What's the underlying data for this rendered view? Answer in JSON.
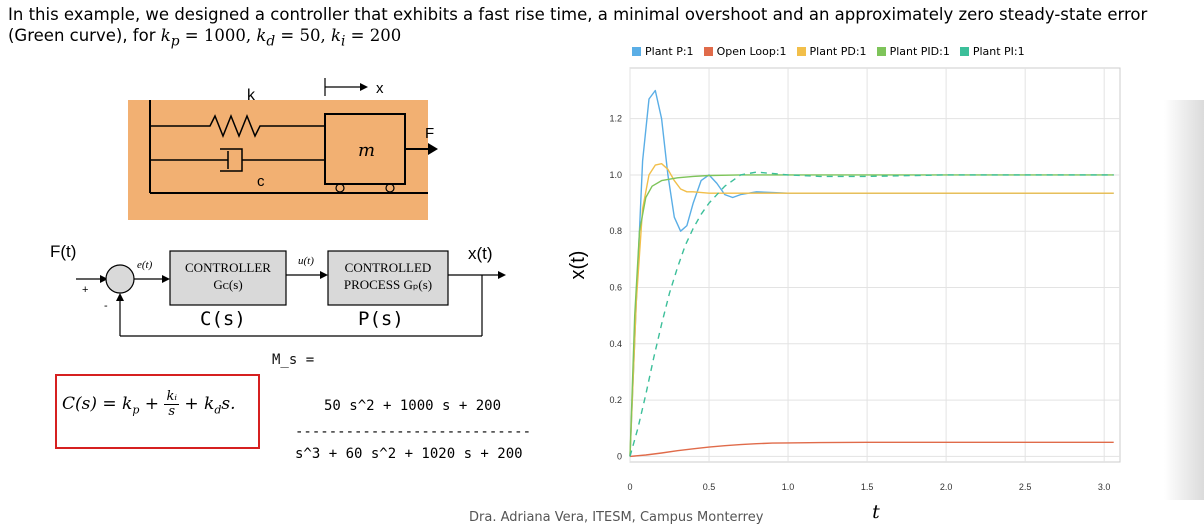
{
  "intro": {
    "line1": "In this example, we designed a controller that exhibits  a fast rise time, a minimal overshoot and an approximately zero steady-state error",
    "line2_prefix": "(Green curve), for ",
    "gains": "kₚ = 1000, kᵈ = 50, kᵢ = 200",
    "kp_sym": "k",
    "kp_sub": "p",
    "kp_val": " = 1000, ",
    "kd_sym": "k",
    "kd_sub": "d",
    "kd_val": " = 50, ",
    "ki_sym": "k",
    "ki_sub": "i",
    "ki_val": " = 200"
  },
  "mechanics": {
    "spring_label": "k",
    "damper_label": "c",
    "mass_label": "m",
    "force_label": "F",
    "displacement_label": "x"
  },
  "block_diagram": {
    "input_label": "F(t)",
    "error_label": "e(t)",
    "plus_sign": "+",
    "minus_sign": "-",
    "controller_line1": "CONTROLLER",
    "controller_line2": "Gᴄ(s)",
    "control_signal": "u(t)",
    "plant_line1": "CONTROLLED",
    "plant_line2": "PROCESS Gₚ(s)",
    "output_label": "x(t)",
    "controller_caption": "C(s)",
    "plant_caption": "P(s)"
  },
  "transfer_function": {
    "name": "M_s =",
    "numerator": "50 s^2 + 1000 s + 200",
    "divider": "----------------------------",
    "denominator": "s^3 + 60 s^2 + 1020 s + 200"
  },
  "formula": {
    "lhs": "C(s) = k",
    "p_sub": "p",
    "plus1": " + ",
    "frac_num": "kᵢ",
    "frac_den": "s",
    "plus2": " + k",
    "d_sub": "d",
    "tail": "s."
  },
  "footer": "Dra. Adriana Vera, ITESM, Campus Monterrey",
  "colors": {
    "plant_p": "#5aaee6",
    "open_loop": "#e06b4a",
    "plant_pd": "#f2bf4a",
    "plant_pid": "#7ec45a",
    "plant_pi": "#3cbf9a",
    "mass_bg": "#f2b072",
    "block_bg": "#d9d9d9",
    "formula_border": "#d62020"
  },
  "chart_data": {
    "type": "line",
    "xlabel": "t",
    "ylabel": "x(t)",
    "xlim": [
      0,
      3.1
    ],
    "ylim": [
      -0.02,
      1.38
    ],
    "x_ticks": [
      "0",
      "0.5",
      "1.0",
      "1.5",
      "2.0",
      "2.5",
      "3.0"
    ],
    "x_tick_values": [
      0,
      0.5,
      1.0,
      1.5,
      2.0,
      2.5,
      3.0
    ],
    "y_ticks": [
      "0",
      "0.2",
      "0.4",
      "0.6",
      "0.8",
      "1.0",
      "1.2"
    ],
    "y_tick_values": [
      0,
      0.2,
      0.4,
      0.6,
      0.8,
      1.0,
      1.2
    ],
    "grid": true,
    "legend_position": "top",
    "series": [
      {
        "name": "Plant P:1",
        "color": "#5aaee6",
        "dash": false,
        "x": [
          0,
          0.04,
          0.08,
          0.12,
          0.16,
          0.2,
          0.24,
          0.28,
          0.32,
          0.36,
          0.4,
          0.45,
          0.5,
          0.55,
          0.6,
          0.65,
          0.7,
          0.8,
          1.0,
          1.5,
          2.0,
          2.5,
          3.06
        ],
        "y": [
          0,
          0.55,
          1.05,
          1.27,
          1.3,
          1.2,
          1.0,
          0.85,
          0.8,
          0.82,
          0.9,
          0.98,
          1.0,
          0.97,
          0.93,
          0.92,
          0.93,
          0.94,
          0.935,
          0.935,
          0.935,
          0.935,
          0.935
        ]
      },
      {
        "name": "Open Loop:1",
        "color": "#e06b4a",
        "dash": false,
        "x": [
          0,
          0.1,
          0.2,
          0.3,
          0.4,
          0.5,
          0.6,
          0.7,
          0.8,
          0.9,
          1.0,
          1.2,
          1.5,
          2.0,
          2.5,
          3.06
        ],
        "y": [
          0,
          0.005,
          0.012,
          0.02,
          0.027,
          0.033,
          0.038,
          0.042,
          0.045,
          0.047,
          0.048,
          0.049,
          0.05,
          0.05,
          0.05,
          0.05
        ]
      },
      {
        "name": "Plant PD:1",
        "color": "#f2bf4a",
        "dash": false,
        "x": [
          0,
          0.04,
          0.08,
          0.12,
          0.16,
          0.2,
          0.24,
          0.28,
          0.32,
          0.36,
          0.4,
          0.5,
          0.6,
          0.8,
          1.0,
          1.5,
          2.0,
          2.5,
          3.06
        ],
        "y": [
          0,
          0.55,
          0.88,
          1.0,
          1.035,
          1.04,
          1.02,
          0.98,
          0.95,
          0.94,
          0.94,
          0.935,
          0.935,
          0.935,
          0.935,
          0.935,
          0.935,
          0.935,
          0.935
        ]
      },
      {
        "name": "Plant PID:1",
        "color": "#7ec45a",
        "dash": false,
        "x": [
          0,
          0.03,
          0.06,
          0.1,
          0.14,
          0.2,
          0.3,
          0.4,
          0.5,
          0.7,
          1.0,
          1.5,
          2.0,
          2.5,
          3.06
        ],
        "y": [
          0,
          0.5,
          0.8,
          0.92,
          0.96,
          0.98,
          0.99,
          0.995,
          0.998,
          1.0,
          1.0,
          1.0,
          1.0,
          1.0,
          1.0
        ]
      },
      {
        "name": "Plant PI:1",
        "color": "#3cbf9a",
        "dash": true,
        "x": [
          0,
          0.05,
          0.1,
          0.15,
          0.2,
          0.25,
          0.3,
          0.35,
          0.4,
          0.45,
          0.5,
          0.6,
          0.7,
          0.8,
          0.9,
          1.0,
          1.2,
          1.5,
          2.0,
          2.5,
          3.06
        ],
        "y": [
          0,
          0.1,
          0.22,
          0.35,
          0.47,
          0.58,
          0.67,
          0.75,
          0.81,
          0.86,
          0.9,
          0.96,
          1.0,
          1.01,
          1.005,
          1.0,
          0.995,
          0.995,
          1.0,
          1.0,
          1.0
        ]
      }
    ]
  }
}
